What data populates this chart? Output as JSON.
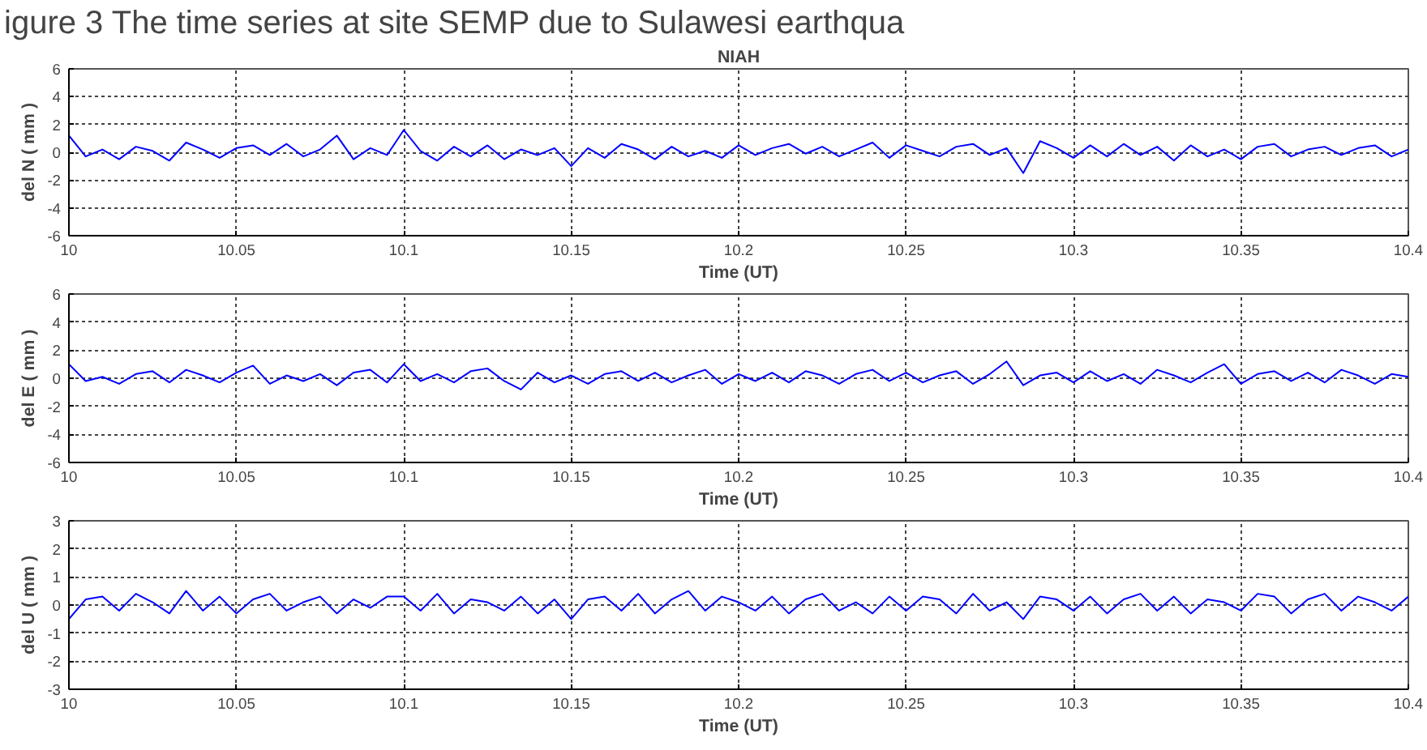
{
  "chart_data": [
    {
      "type": "line",
      "title": "NIAH",
      "annotations": [
        "igure 3 The time series at site SEMP  due to Sulawesi earthqua"
      ],
      "xlabel": "Time (UT)",
      "ylabel": "del N ( mm )",
      "color": "#0000ff",
      "grid": true,
      "xlim": [
        10,
        10.4
      ],
      "ylim": [
        -6,
        6
      ],
      "xticks": [
        10,
        10.05,
        10.1,
        10.15,
        10.2,
        10.25,
        10.3,
        10.35,
        10.4
      ],
      "yticks": [
        -6,
        -4,
        -2,
        0,
        2,
        4,
        6
      ],
      "x": [
        10,
        10.005,
        10.01,
        10.015,
        10.02,
        10.025,
        10.03,
        10.035,
        10.04,
        10.045,
        10.05,
        10.055,
        10.06,
        10.065,
        10.07,
        10.075,
        10.08,
        10.085,
        10.09,
        10.095,
        10.1,
        10.105,
        10.11,
        10.115,
        10.12,
        10.125,
        10.13,
        10.135,
        10.14,
        10.145,
        10.15,
        10.155,
        10.16,
        10.165,
        10.17,
        10.175,
        10.18,
        10.185,
        10.19,
        10.195,
        10.2,
        10.205,
        10.21,
        10.215,
        10.22,
        10.225,
        10.23,
        10.235,
        10.24,
        10.245,
        10.25,
        10.255,
        10.26,
        10.265,
        10.27,
        10.275,
        10.28,
        10.285,
        10.29,
        10.295,
        10.3,
        10.305,
        10.31,
        10.315,
        10.32,
        10.325,
        10.33,
        10.335,
        10.34,
        10.345,
        10.35,
        10.355,
        10.36,
        10.365,
        10.37,
        10.375,
        10.38,
        10.385,
        10.39,
        10.395,
        10.4
      ],
      "values": [
        1.2,
        -0.3,
        0.2,
        -0.5,
        0.4,
        0.1,
        -0.6,
        0.7,
        0.2,
        -0.4,
        0.3,
        0.5,
        -0.2,
        0.6,
        -0.3,
        0.2,
        1.2,
        -0.5,
        0.3,
        -0.2,
        1.6,
        0.1,
        -0.6,
        0.4,
        -0.3,
        0.5,
        -0.5,
        0.2,
        -0.2,
        0.3,
        -1.0,
        0.3,
        -0.4,
        0.6,
        0.2,
        -0.5,
        0.4,
        -0.3,
        0.1,
        -0.4,
        0.5,
        -0.2,
        0.3,
        0.6,
        -0.1,
        0.4,
        -0.3,
        0.2,
        0.7,
        -0.4,
        0.5,
        0.1,
        -0.3,
        0.4,
        0.6,
        -0.2,
        0.3,
        -1.5,
        0.8,
        0.3,
        -0.4,
        0.5,
        -0.3,
        0.6,
        -0.2,
        0.4,
        -0.6,
        0.5,
        -0.3,
        0.2,
        -0.5,
        0.4,
        0.6,
        -0.3,
        0.2,
        0.4,
        -0.2,
        0.3,
        0.5,
        -0.3,
        0.2
      ]
    },
    {
      "type": "line",
      "xlabel": "Time (UT)",
      "ylabel": "del E ( mm )",
      "color": "#0000ff",
      "grid": true,
      "xlim": [
        10,
        10.4
      ],
      "ylim": [
        -6,
        6
      ],
      "xticks": [
        10,
        10.05,
        10.1,
        10.15,
        10.2,
        10.25,
        10.3,
        10.35,
        10.4
      ],
      "yticks": [
        -6,
        -4,
        -2,
        0,
        2,
        4,
        6
      ],
      "x": [
        10,
        10.005,
        10.01,
        10.015,
        10.02,
        10.025,
        10.03,
        10.035,
        10.04,
        10.045,
        10.05,
        10.055,
        10.06,
        10.065,
        10.07,
        10.075,
        10.08,
        10.085,
        10.09,
        10.095,
        10.1,
        10.105,
        10.11,
        10.115,
        10.12,
        10.125,
        10.13,
        10.135,
        10.14,
        10.145,
        10.15,
        10.155,
        10.16,
        10.165,
        10.17,
        10.175,
        10.18,
        10.185,
        10.19,
        10.195,
        10.2,
        10.205,
        10.21,
        10.215,
        10.22,
        10.225,
        10.23,
        10.235,
        10.24,
        10.245,
        10.25,
        10.255,
        10.26,
        10.265,
        10.27,
        10.275,
        10.28,
        10.285,
        10.29,
        10.295,
        10.3,
        10.305,
        10.31,
        10.315,
        10.32,
        10.325,
        10.33,
        10.335,
        10.34,
        10.345,
        10.35,
        10.355,
        10.36,
        10.365,
        10.37,
        10.375,
        10.38,
        10.385,
        10.39,
        10.395,
        10.4
      ],
      "values": [
        1.0,
        -0.2,
        0.1,
        -0.4,
        0.3,
        0.5,
        -0.3,
        0.6,
        0.2,
        -0.3,
        0.4,
        0.9,
        -0.4,
        0.2,
        -0.2,
        0.3,
        -0.5,
        0.4,
        0.6,
        -0.3,
        1.0,
        -0.2,
        0.3,
        -0.3,
        0.5,
        0.7,
        -0.2,
        -0.8,
        0.4,
        -0.3,
        0.2,
        -0.4,
        0.3,
        0.5,
        -0.2,
        0.4,
        -0.3,
        0.2,
        0.6,
        -0.4,
        0.3,
        -0.2,
        0.4,
        -0.3,
        0.5,
        0.2,
        -0.4,
        0.3,
        0.6,
        -0.2,
        0.4,
        -0.3,
        0.2,
        0.5,
        -0.4,
        0.3,
        1.2,
        -0.5,
        0.2,
        0.4,
        -0.3,
        0.5,
        -0.2,
        0.3,
        -0.4,
        0.6,
        0.2,
        -0.3,
        0.4,
        1.0,
        -0.4,
        0.3,
        0.5,
        -0.2,
        0.4,
        -0.3,
        0.6,
        0.2,
        -0.4,
        0.3,
        0.1
      ]
    },
    {
      "type": "line",
      "xlabel": "Time (UT)",
      "ylabel": "del U ( mm )",
      "color": "#0000ff",
      "grid": true,
      "xlim": [
        10,
        10.4
      ],
      "ylim": [
        -3,
        3
      ],
      "xticks": [
        10,
        10.05,
        10.1,
        10.15,
        10.2,
        10.25,
        10.3,
        10.35,
        10.4
      ],
      "yticks": [
        -3,
        -2,
        -1,
        0,
        1,
        2,
        3
      ],
      "x": [
        10,
        10.005,
        10.01,
        10.015,
        10.02,
        10.025,
        10.03,
        10.035,
        10.04,
        10.045,
        10.05,
        10.055,
        10.06,
        10.065,
        10.07,
        10.075,
        10.08,
        10.085,
        10.09,
        10.095,
        10.1,
        10.105,
        10.11,
        10.115,
        10.12,
        10.125,
        10.13,
        10.135,
        10.14,
        10.145,
        10.15,
        10.155,
        10.16,
        10.165,
        10.17,
        10.175,
        10.18,
        10.185,
        10.19,
        10.195,
        10.2,
        10.205,
        10.21,
        10.215,
        10.22,
        10.225,
        10.23,
        10.235,
        10.24,
        10.245,
        10.25,
        10.255,
        10.26,
        10.265,
        10.27,
        10.275,
        10.28,
        10.285,
        10.29,
        10.295,
        10.3,
        10.305,
        10.31,
        10.315,
        10.32,
        10.325,
        10.33,
        10.335,
        10.34,
        10.345,
        10.35,
        10.355,
        10.36,
        10.365,
        10.37,
        10.375,
        10.38,
        10.385,
        10.39,
        10.395,
        10.4
      ],
      "values": [
        -0.5,
        0.2,
        0.3,
        -0.2,
        0.4,
        0.1,
        -0.3,
        0.5,
        -0.2,
        0.3,
        -0.3,
        0.2,
        0.4,
        -0.2,
        0.1,
        0.3,
        -0.3,
        0.2,
        -0.1,
        0.3,
        0.3,
        -0.2,
        0.4,
        -0.3,
        0.2,
        0.1,
        -0.2,
        0.3,
        -0.3,
        0.2,
        -0.5,
        0.2,
        0.3,
        -0.2,
        0.4,
        -0.3,
        0.2,
        0.5,
        -0.2,
        0.3,
        0.1,
        -0.2,
        0.3,
        -0.3,
        0.2,
        0.4,
        -0.2,
        0.1,
        -0.3,
        0.3,
        -0.2,
        0.3,
        0.2,
        -0.3,
        0.4,
        -0.2,
        0.1,
        -0.5,
        0.3,
        0.2,
        -0.2,
        0.3,
        -0.3,
        0.2,
        0.4,
        -0.2,
        0.3,
        -0.3,
        0.2,
        0.1,
        -0.2,
        0.4,
        0.3,
        -0.3,
        0.2,
        0.4,
        -0.2,
        0.3,
        0.1,
        -0.2,
        0.3
      ]
    }
  ]
}
